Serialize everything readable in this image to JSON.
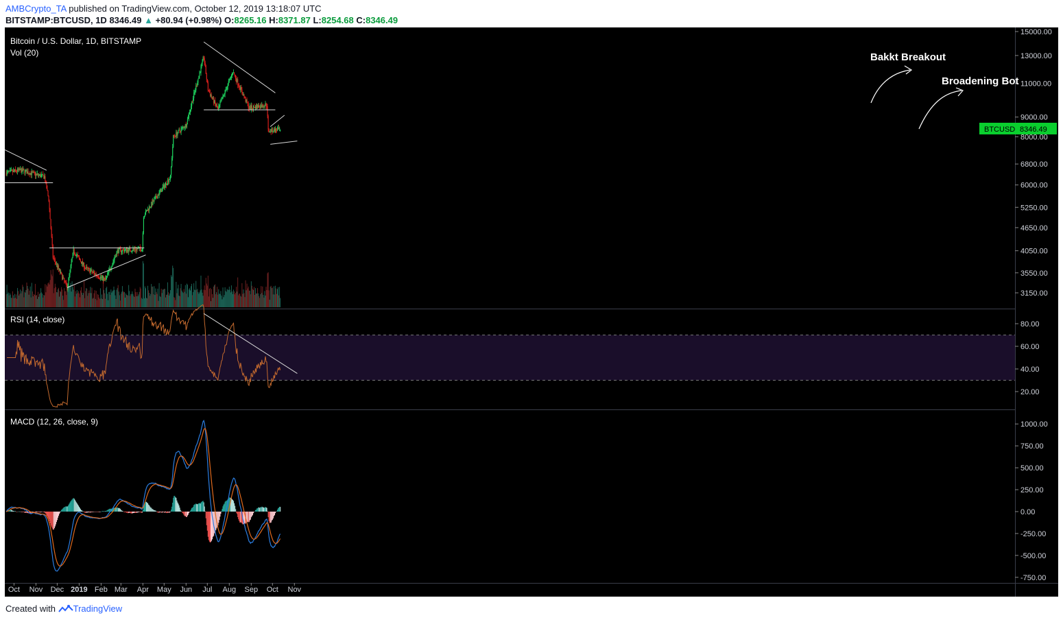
{
  "header": {
    "author": "AMBCrypto_TA",
    "published_text": "published on TradingView.com, October 12, 2019 13:18:07 UTC",
    "symbol": "BITSTAMP:BTCUSD, 1D",
    "last": "8346.49",
    "change_arrow": "▲",
    "change": "+80.94 (+0.98%)",
    "o_label": "O:",
    "o_value": "8265.16",
    "h_label": "H:",
    "h_value": "8371.87",
    "l_label": "L:",
    "l_value": "8254.68",
    "c_label": "C:",
    "c_value": "8346.49"
  },
  "footer": {
    "created_with": "Created with",
    "brand": "TradingView"
  },
  "colors": {
    "background": "#000000",
    "up": "#1ed760",
    "down": "#e0211d",
    "vol_up": "#1e6b5c",
    "vol_down": "#7a2424",
    "rsi_line": "#c46a2e",
    "rsi_band": "#1a0e2a",
    "macd_line": "#2b7de0",
    "signal_line": "#e06a1e",
    "hist_up_strong": "#26a69a",
    "hist_up_weak": "#b2dfdb",
    "hist_down_strong": "#ef5350",
    "hist_down_weak": "#ffcdd2",
    "price_tag": "#0acf2e"
  },
  "chart_data": [
    {
      "type": "candlestick",
      "title": "Bitcoin / U.S. Dollar, 1D, BITSTAMP",
      "secondary_label": "Vol (20)",
      "timeframe": "1D",
      "y_axis_ticks": [
        "15000.00",
        "13000.00",
        "11000.00",
        "9000.00",
        "8000.00",
        "6800.00",
        "6000.00",
        "5250.00",
        "4650.00",
        "4050.00",
        "3550.00",
        "3150.00"
      ],
      "y_scale": "log",
      "x_axis_labels": [
        "Oct",
        "Nov",
        "Dec",
        "2019",
        "Feb",
        "Mar",
        "Apr",
        "May",
        "Jun",
        "Jul",
        "Aug",
        "Sep",
        "Oct",
        "Nov"
      ],
      "last_price_label": "BTCUSD",
      "last_price": "8346.49",
      "annotations": [
        "Bakkt Breakout",
        "Broadening Bot"
      ],
      "price_path_approx": [
        {
          "x": "2018-09-20",
          "y": 6450
        },
        {
          "x": "2018-10-10",
          "y": 6550
        },
        {
          "x": "2018-11-13",
          "y": 6300
        },
        {
          "x": "2018-11-19",
          "y": 5500
        },
        {
          "x": "2018-11-25",
          "y": 3900
        },
        {
          "x": "2018-12-15",
          "y": 3250
        },
        {
          "x": "2018-12-24",
          "y": 4050
        },
        {
          "x": "2019-01-10",
          "y": 3650
        },
        {
          "x": "2019-02-07",
          "y": 3400
        },
        {
          "x": "2019-02-24",
          "y": 4050
        },
        {
          "x": "2019-03-31",
          "y": 4100
        },
        {
          "x": "2019-04-02",
          "y": 5000
        },
        {
          "x": "2019-05-10",
          "y": 6300
        },
        {
          "x": "2019-05-14",
          "y": 8000
        },
        {
          "x": "2019-06-01",
          "y": 8600
        },
        {
          "x": "2019-06-26",
          "y": 12900
        },
        {
          "x": "2019-07-02",
          "y": 10600
        },
        {
          "x": "2019-07-16",
          "y": 9400
        },
        {
          "x": "2019-08-06",
          "y": 11800
        },
        {
          "x": "2019-08-29",
          "y": 9500
        },
        {
          "x": "2019-09-23",
          "y": 9700
        },
        {
          "x": "2019-09-25",
          "y": 8300
        },
        {
          "x": "2019-10-12",
          "y": 8346
        }
      ]
    },
    {
      "type": "line",
      "title": "RSI (14, close)",
      "y_axis_ticks": [
        "80.00",
        "60.00",
        "40.00",
        "20.00"
      ],
      "bands": [
        30,
        70
      ]
    },
    {
      "type": "bar",
      "title": "MACD (12, 26, close, 9)",
      "y_axis_ticks": [
        "1000.00",
        "750.00",
        "500.00",
        "250.00",
        "0.00",
        "-250.00",
        "-500.00",
        "-750.00"
      ]
    }
  ]
}
